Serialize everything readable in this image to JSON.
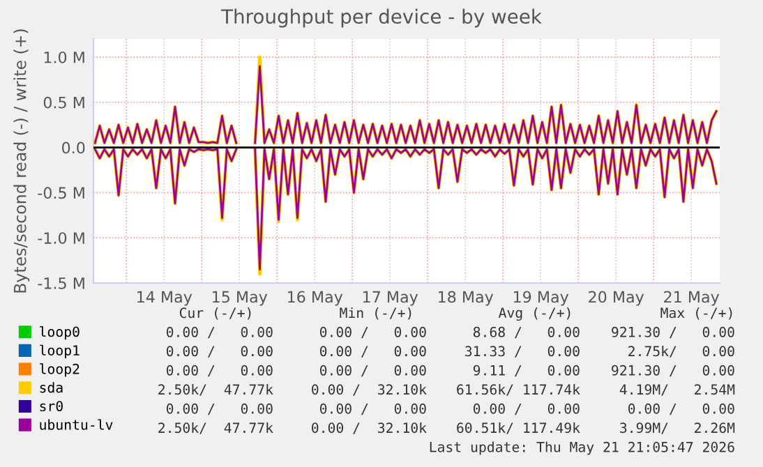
{
  "chart_data": {
    "type": "line",
    "title": "Throughput per device - by week",
    "ylabel": "Bytes/second read (-) / write (+)",
    "x": [
      "2026-05-13T14:00",
      "2026-05-13T15:30",
      "2026-05-13T17:00",
      "2026-05-13T18:30",
      "2026-05-13T20:00",
      "2026-05-13T21:30",
      "2026-05-13T23:00",
      "2026-05-14T00:30",
      "2026-05-14T02:00",
      "2026-05-14T03:30",
      "2026-05-14T05:00",
      "2026-05-14T06:30",
      "2026-05-14T08:00",
      "2026-05-14T09:30",
      "2026-05-14T11:00",
      "2026-05-14T12:30",
      "2026-05-14T14:00",
      "2026-05-14T15:30",
      "2026-05-14T17:00",
      "2026-05-14T18:30",
      "2026-05-14T20:00",
      "2026-05-14T21:30",
      "2026-05-14T23:00",
      "2026-05-15T00:30",
      "2026-05-15T02:00",
      "2026-05-15T03:30",
      "2026-05-15T05:00",
      "2026-05-15T06:30",
      "2026-05-15T08:00",
      "2026-05-15T09:30",
      "2026-05-15T11:00",
      "2026-05-15T12:30",
      "2026-05-15T14:00",
      "2026-05-15T15:30",
      "2026-05-15T17:00",
      "2026-05-15T18:30",
      "2026-05-15T20:00",
      "2026-05-15T21:30",
      "2026-05-15T23:00",
      "2026-05-16T00:30",
      "2026-05-16T02:00",
      "2026-05-16T03:30",
      "2026-05-16T05:00",
      "2026-05-16T06:30",
      "2026-05-16T08:00",
      "2026-05-16T09:30",
      "2026-05-16T11:00",
      "2026-05-16T12:30",
      "2026-05-16T14:00",
      "2026-05-16T15:30",
      "2026-05-16T17:00",
      "2026-05-16T18:30",
      "2026-05-16T20:00",
      "2026-05-16T21:30",
      "2026-05-16T23:00",
      "2026-05-17T00:30",
      "2026-05-17T02:00",
      "2026-05-17T03:30",
      "2026-05-17T05:00",
      "2026-05-17T06:30",
      "2026-05-17T08:00",
      "2026-05-17T09:30",
      "2026-05-17T11:00",
      "2026-05-17T12:30",
      "2026-05-17T14:00",
      "2026-05-17T15:30",
      "2026-05-17T17:00",
      "2026-05-17T18:30",
      "2026-05-17T20:00",
      "2026-05-17T21:30",
      "2026-05-17T23:00",
      "2026-05-18T00:30",
      "2026-05-18T02:00",
      "2026-05-18T03:30",
      "2026-05-18T05:00",
      "2026-05-18T06:30",
      "2026-05-18T08:00",
      "2026-05-18T09:30",
      "2026-05-18T11:00",
      "2026-05-18T12:30",
      "2026-05-18T14:00",
      "2026-05-18T15:30",
      "2026-05-18T17:00",
      "2026-05-18T18:30",
      "2026-05-18T20:00",
      "2026-05-18T21:30",
      "2026-05-18T23:00",
      "2026-05-19T00:30",
      "2026-05-19T02:00",
      "2026-05-19T03:30",
      "2026-05-19T05:00",
      "2026-05-19T06:30",
      "2026-05-19T08:00",
      "2026-05-19T09:30",
      "2026-05-19T11:00",
      "2026-05-19T12:30",
      "2026-05-19T14:00",
      "2026-05-19T15:30",
      "2026-05-19T17:00",
      "2026-05-19T18:30",
      "2026-05-19T20:00",
      "2026-05-19T21:30",
      "2026-05-19T23:00",
      "2026-05-20T00:30",
      "2026-05-20T02:00",
      "2026-05-20T03:30",
      "2026-05-20T05:00",
      "2026-05-20T06:30",
      "2026-05-20T08:00",
      "2026-05-20T09:30",
      "2026-05-20T11:00",
      "2026-05-20T12:30",
      "2026-05-20T14:00",
      "2026-05-20T15:30",
      "2026-05-20T17:00",
      "2026-05-20T18:30",
      "2026-05-20T20:00",
      "2026-05-20T21:30",
      "2026-05-20T23:00",
      "2026-05-21T00:30",
      "2026-05-21T02:00",
      "2026-05-21T03:30",
      "2026-05-21T05:00",
      "2026-05-21T06:30",
      "2026-05-21T08:00",
      "2026-05-21T09:30",
      "2026-05-21T11:00",
      "2026-05-21T12:30",
      "2026-05-21T14:00",
      "2026-05-21T15:30",
      "2026-05-21T17:00",
      "2026-05-21T18:30",
      "2026-05-21T20:00"
    ],
    "series": [
      {
        "name": "loop0",
        "color": "#00cc00",
        "values": [
          null,
          null,
          null,
          null,
          null,
          null,
          null,
          null,
          null,
          null,
          null,
          null,
          null,
          null,
          null,
          null,
          null,
          null,
          null,
          null,
          null,
          null,
          null,
          null,
          null,
          null,
          null,
          null,
          null,
          null,
          null,
          null,
          null,
          null,
          null,
          null,
          null,
          null,
          null,
          null,
          null,
          null,
          null,
          null,
          null,
          null,
          null,
          null,
          null,
          null,
          null,
          null,
          null,
          null,
          null,
          null,
          null,
          null,
          null,
          null,
          null,
          null,
          null,
          null,
          null,
          null,
          null,
          null,
          null,
          null,
          null,
          null,
          null,
          null,
          null,
          null,
          null,
          null,
          null,
          null,
          null,
          null,
          null,
          null,
          null,
          null,
          null,
          null,
          null,
          null,
          null,
          null,
          null,
          null,
          null,
          null,
          null,
          null,
          null,
          null,
          null,
          null,
          null,
          null,
          null,
          null,
          null,
          null,
          null,
          null,
          null,
          null,
          null,
          null,
          null,
          null,
          null,
          null,
          null,
          null,
          null,
          null,
          null,
          null,
          null,
          null,
          null,
          null,
          null,
          null,
          null,
          null,
          null
        ]
      },
      {
        "name": "loop1",
        "color": "#0066b3",
        "values": [
          null,
          null,
          null,
          null,
          null,
          null,
          null,
          null,
          null,
          null,
          null,
          null,
          null,
          null,
          null,
          null,
          null,
          null,
          null,
          null,
          null,
          null,
          null,
          null,
          null,
          null,
          null,
          null,
          null,
          null,
          null,
          null,
          null,
          null,
          null,
          null,
          null,
          null,
          null,
          null,
          null,
          null,
          null,
          null,
          null,
          null,
          null,
          null,
          null,
          null,
          null,
          null,
          null,
          null,
          null,
          null,
          null,
          null,
          null,
          null,
          null,
          null,
          null,
          null,
          null,
          null,
          null,
          null,
          null,
          null,
          null,
          null,
          null,
          null,
          null,
          null,
          null,
          null,
          null,
          null,
          null,
          null,
          null,
          null,
          null,
          null,
          null,
          null,
          null,
          null,
          null,
          null,
          null,
          null,
          null,
          null,
          null,
          null,
          null,
          null,
          null,
          null,
          null,
          null,
          null,
          null,
          null,
          null,
          null,
          null,
          null,
          null,
          null,
          null,
          null,
          null,
          null,
          null,
          null,
          null,
          null,
          null,
          null,
          null,
          null,
          null,
          null,
          null,
          null,
          null,
          null,
          null,
          null
        ]
      },
      {
        "name": "loop2",
        "color": "#ff8000",
        "values": [
          null,
          null,
          null,
          null,
          null,
          null,
          null,
          null,
          null,
          null,
          null,
          null,
          null,
          null,
          null,
          null,
          null,
          null,
          null,
          null,
          null,
          null,
          null,
          null,
          null,
          null,
          null,
          null,
          null,
          null,
          null,
          null,
          null,
          null,
          null,
          null,
          null,
          null,
          null,
          null,
          null,
          null,
          null,
          null,
          null,
          null,
          null,
          null,
          null,
          null,
          null,
          null,
          null,
          null,
          null,
          null,
          null,
          null,
          null,
          null,
          null,
          null,
          null,
          null,
          null,
          null,
          null,
          null,
          null,
          null,
          null,
          null,
          null,
          null,
          null,
          null,
          null,
          null,
          null,
          null,
          null,
          null,
          null,
          null,
          null,
          null,
          null,
          null,
          null,
          null,
          null,
          null,
          null,
          null,
          null,
          null,
          null,
          null,
          null,
          null,
          null,
          null,
          null,
          null,
          null,
          null,
          null,
          null,
          null,
          null,
          null,
          null,
          null,
          null,
          null,
          null,
          null,
          null,
          null,
          null,
          null,
          null,
          null,
          null,
          null,
          null,
          null,
          null,
          null,
          null,
          null,
          null,
          null
        ]
      },
      {
        "name": "sda",
        "color": "#ffcc00",
        "values": [
          0.05,
          0.24,
          0.05,
          0.2,
          0.05,
          0.25,
          0.05,
          0.22,
          0.05,
          0.26,
          0.05,
          0.2,
          0.05,
          0.3,
          0.05,
          0.24,
          0.05,
          0.45,
          0.05,
          0.28,
          0.05,
          0.22,
          0.06,
          0.06,
          0.05,
          0.06,
          0.05,
          0.35,
          0.05,
          0.24,
          0.05,
          null,
          null,
          null,
          0.05,
          1.0,
          0.05,
          0.2,
          0.05,
          0.35,
          0.05,
          0.3,
          0.05,
          0.38,
          0.05,
          0.27,
          0.05,
          0.3,
          0.05,
          0.36,
          0.05,
          0.25,
          0.05,
          0.28,
          0.05,
          0.3,
          0.05,
          0.25,
          0.05,
          0.26,
          0.05,
          0.24,
          0.05,
          0.26,
          0.05,
          0.25,
          0.05,
          0.24,
          0.05,
          0.3,
          0.05,
          0.26,
          0.05,
          0.3,
          0.05,
          0.28,
          0.05,
          0.25,
          0.05,
          0.24,
          0.05,
          0.26,
          0.05,
          0.25,
          0.05,
          0.24,
          0.05,
          0.26,
          0.05,
          0.25,
          0.05,
          0.3,
          0.05,
          0.35,
          0.05,
          0.28,
          0.05,
          0.45,
          0.05,
          0.47,
          0.05,
          0.26,
          0.05,
          0.25,
          0.05,
          0.24,
          0.05,
          0.35,
          0.05,
          0.3,
          0.05,
          0.4,
          0.05,
          0.28,
          0.05,
          0.47,
          0.05,
          0.25,
          0.05,
          0.26,
          0.05,
          0.33,
          0.05,
          0.3,
          0.05,
          0.36,
          0.05,
          0.3,
          0.05,
          0.28,
          0.05,
          0.3,
          0.4
        ]
      },
      {
        "color": "#ffcc00",
        "values": [
          -0.02,
          -0.12,
          -0.02,
          -0.1,
          -0.02,
          -0.53,
          -0.02,
          -0.1,
          -0.02,
          -0.08,
          -0.02,
          -0.12,
          -0.02,
          -0.45,
          -0.02,
          -0.12,
          -0.02,
          -0.62,
          -0.02,
          -0.2,
          -0.02,
          -0.05,
          -0.02,
          -0.03,
          -0.02,
          -0.03,
          -0.02,
          -0.8,
          -0.02,
          -0.15,
          -0.02,
          null,
          null,
          null,
          -0.02,
          -1.4,
          -0.02,
          -0.35,
          -0.02,
          -0.82,
          -0.02,
          -0.52,
          -0.02,
          -0.8,
          -0.02,
          -0.12,
          -0.02,
          -0.15,
          -0.02,
          -0.6,
          -0.02,
          -0.3,
          -0.02,
          -0.1,
          -0.02,
          -0.5,
          -0.02,
          -0.35,
          -0.02,
          -0.1,
          -0.02,
          -0.08,
          -0.02,
          -0.12,
          -0.02,
          -0.06,
          -0.02,
          -0.1,
          -0.02,
          -0.08,
          -0.02,
          -0.06,
          -0.02,
          -0.45,
          -0.02,
          -0.08,
          -0.02,
          -0.38,
          -0.02,
          -0.06,
          -0.02,
          -0.08,
          -0.02,
          -0.06,
          -0.02,
          -0.1,
          -0.02,
          -0.07,
          -0.02,
          -0.42,
          -0.02,
          -0.1,
          -0.02,
          -0.41,
          -0.02,
          -0.12,
          -0.02,
          -0.47,
          -0.02,
          -0.45,
          -0.02,
          -0.28,
          -0.02,
          -0.1,
          -0.02,
          -0.08,
          -0.02,
          -0.52,
          -0.02,
          -0.4,
          -0.02,
          -0.52,
          -0.02,
          -0.3,
          -0.02,
          -0.45,
          -0.02,
          -0.2,
          -0.02,
          -0.1,
          -0.02,
          -0.55,
          -0.02,
          -0.12,
          -0.02,
          -0.6,
          -0.02,
          -0.45,
          -0.02,
          -0.2,
          -0.02,
          -0.15,
          -0.4
        ]
      },
      {
        "name": "sr0",
        "color": "#330099",
        "values": [
          null,
          null,
          null,
          null,
          null,
          null,
          null,
          null,
          null,
          null,
          null,
          null,
          null,
          null,
          null,
          null,
          null,
          null,
          null,
          null,
          null,
          null,
          null,
          null,
          null,
          null,
          null,
          null,
          null,
          null,
          null,
          null,
          null,
          null,
          null,
          null,
          null,
          null,
          null,
          null,
          null,
          null,
          null,
          null,
          null,
          null,
          null,
          null,
          null,
          null,
          null,
          null,
          null,
          null,
          null,
          null,
          null,
          null,
          null,
          null,
          null,
          null,
          null,
          null,
          null,
          null,
          null,
          null,
          null,
          null,
          null,
          null,
          null,
          null,
          null,
          null,
          null,
          null,
          null,
          null,
          null,
          null,
          null,
          null,
          null,
          null,
          null,
          null,
          null,
          null,
          null,
          null,
          null,
          null,
          null,
          null,
          null,
          null,
          null,
          null,
          null,
          null,
          null,
          null,
          null,
          null,
          null,
          null,
          null,
          null,
          null,
          null,
          null,
          null,
          null,
          null,
          null,
          null,
          null,
          null,
          null,
          null,
          null,
          null,
          null,
          null,
          null,
          null,
          null,
          null,
          null,
          null,
          null
        ]
      },
      {
        "name": "ubuntu-lv",
        "color": "#990099",
        "values": [
          0.05,
          0.24,
          0.05,
          0.2,
          0.05,
          0.25,
          0.05,
          0.22,
          0.05,
          0.26,
          0.05,
          0.2,
          0.05,
          0.3,
          0.05,
          0.24,
          0.05,
          0.45,
          0.05,
          0.28,
          0.05,
          0.22,
          0.06,
          0.06,
          0.05,
          0.06,
          0.05,
          0.35,
          0.05,
          0.24,
          0.05,
          null,
          null,
          null,
          0.05,
          0.9,
          0.05,
          0.2,
          0.05,
          0.35,
          0.05,
          0.3,
          0.05,
          0.38,
          0.05,
          0.27,
          0.05,
          0.3,
          0.05,
          0.36,
          0.05,
          0.25,
          0.05,
          0.28,
          0.05,
          0.3,
          0.05,
          0.25,
          0.05,
          0.26,
          0.05,
          0.24,
          0.05,
          0.26,
          0.05,
          0.25,
          0.05,
          0.24,
          0.05,
          0.3,
          0.05,
          0.26,
          0.05,
          0.3,
          0.05,
          0.28,
          0.05,
          0.25,
          0.05,
          0.24,
          0.05,
          0.26,
          0.05,
          0.25,
          0.05,
          0.24,
          0.05,
          0.26,
          0.05,
          0.25,
          0.05,
          0.3,
          0.05,
          0.35,
          0.05,
          0.28,
          0.05,
          0.45,
          0.05,
          0.47,
          0.05,
          0.26,
          0.05,
          0.25,
          0.05,
          0.24,
          0.05,
          0.35,
          0.05,
          0.3,
          0.05,
          0.4,
          0.05,
          0.28,
          0.05,
          0.47,
          0.05,
          0.25,
          0.05,
          0.26,
          0.05,
          0.33,
          0.05,
          0.3,
          0.05,
          0.36,
          0.05,
          0.3,
          0.05,
          0.28,
          0.05,
          0.3,
          0.4
        ]
      },
      {
        "color": "#990099",
        "values": [
          -0.02,
          -0.12,
          -0.02,
          -0.1,
          -0.02,
          -0.53,
          -0.02,
          -0.1,
          -0.02,
          -0.08,
          -0.02,
          -0.12,
          -0.02,
          -0.45,
          -0.02,
          -0.12,
          -0.02,
          -0.62,
          -0.02,
          -0.2,
          -0.02,
          -0.05,
          -0.02,
          -0.03,
          -0.02,
          -0.03,
          -0.02,
          -0.78,
          -0.02,
          -0.15,
          -0.02,
          null,
          null,
          null,
          -0.02,
          -1.35,
          -0.02,
          -0.35,
          -0.02,
          -0.8,
          -0.02,
          -0.52,
          -0.02,
          -0.78,
          -0.02,
          -0.12,
          -0.02,
          -0.15,
          -0.02,
          -0.6,
          -0.02,
          -0.3,
          -0.02,
          -0.1,
          -0.02,
          -0.5,
          -0.02,
          -0.35,
          -0.02,
          -0.1,
          -0.02,
          -0.08,
          -0.02,
          -0.12,
          -0.02,
          -0.06,
          -0.02,
          -0.1,
          -0.02,
          -0.08,
          -0.02,
          -0.06,
          -0.02,
          -0.45,
          -0.02,
          -0.08,
          -0.02,
          -0.38,
          -0.02,
          -0.06,
          -0.02,
          -0.08,
          -0.02,
          -0.06,
          -0.02,
          -0.1,
          -0.02,
          -0.07,
          -0.02,
          -0.42,
          -0.02,
          -0.1,
          -0.02,
          -0.41,
          -0.02,
          -0.12,
          -0.02,
          -0.47,
          -0.02,
          -0.45,
          -0.02,
          -0.28,
          -0.02,
          -0.1,
          -0.02,
          -0.08,
          -0.02,
          -0.52,
          -0.02,
          -0.4,
          -0.02,
          -0.52,
          -0.02,
          -0.3,
          -0.02,
          -0.45,
          -0.02,
          -0.2,
          -0.02,
          -0.1,
          -0.02,
          -0.55,
          -0.02,
          -0.12,
          -0.02,
          -0.6,
          -0.02,
          -0.45,
          -0.02,
          -0.2,
          -0.02,
          -0.15,
          -0.4
        ]
      }
    ],
    "xlim": [
      "2026-05-13T13:30",
      "2026-05-21T21:05"
    ],
    "xticks": [
      {
        "value": "2026-05-14T00:00",
        "label": null
      },
      {
        "value": "2026-05-14T12:00",
        "label": "14 May"
      },
      {
        "value": "2026-05-15T00:00",
        "label": null
      },
      {
        "value": "2026-05-15T12:00",
        "label": "15 May"
      },
      {
        "value": "2026-05-16T00:00",
        "label": null
      },
      {
        "value": "2026-05-16T12:00",
        "label": "16 May"
      },
      {
        "value": "2026-05-17T00:00",
        "label": null
      },
      {
        "value": "2026-05-17T12:00",
        "label": "17 May"
      },
      {
        "value": "2026-05-18T00:00",
        "label": null
      },
      {
        "value": "2026-05-18T12:00",
        "label": "18 May"
      },
      {
        "value": "2026-05-19T00:00",
        "label": null
      },
      {
        "value": "2026-05-19T12:00",
        "label": "19 May"
      },
      {
        "value": "2026-05-20T00:00",
        "label": null
      },
      {
        "value": "2026-05-20T12:00",
        "label": "20 May"
      },
      {
        "value": "2026-05-21T00:00",
        "label": null
      },
      {
        "value": "2026-05-21T12:00",
        "label": "21 May"
      }
    ],
    "ylim": [
      -1.5,
      1.2
    ],
    "yticks": [
      {
        "value": -1.5,
        "label": "-1.5 M"
      },
      {
        "value": -1.0,
        "label": "-1.0 M"
      },
      {
        "value": -0.5,
        "label": "-0.5 M"
      },
      {
        "value": 0,
        "label": "0.0"
      },
      {
        "value": 0.5,
        "label": "0.5 M"
      },
      {
        "value": 1.0,
        "label": "1.0 M"
      }
    ],
    "ref_lines": [
      {
        "axis": "y",
        "value": 0,
        "color": "#000000"
      }
    ],
    "grid": true,
    "legend": "bottom",
    "annotations": [
      "Cur (-/+)",
      "Min (-/+)",
      "Avg (-/+)",
      "Max (-/+)",
      "0.00 /   0.00",
      "0.00 /   0.00",
      "8.68 /   0.00",
      "921.30 /   0.00",
      "0.00 /   0.00",
      "0.00 /   0.00",
      "31.33 /   0.00",
      "2.75k/   0.00",
      "0.00 /   0.00",
      "0.00 /   0.00",
      "9.11 /   0.00",
      "921.30 /   0.00",
      "2.50k/  47.77k",
      "0.00 /  32.10k",
      "61.56k/ 117.74k",
      "4.19M/   2.54M",
      "0.00 /   0.00",
      "0.00 /   0.00",
      "0.00 /   0.00",
      "0.00 /   0.00",
      "2.50k/  47.77k",
      "0.00 /  32.10k",
      "60.51k/ 117.49k",
      "3.99M/   2.26M",
      "Last update: Thu May 21 21:05:47 2026"
    ]
  }
}
